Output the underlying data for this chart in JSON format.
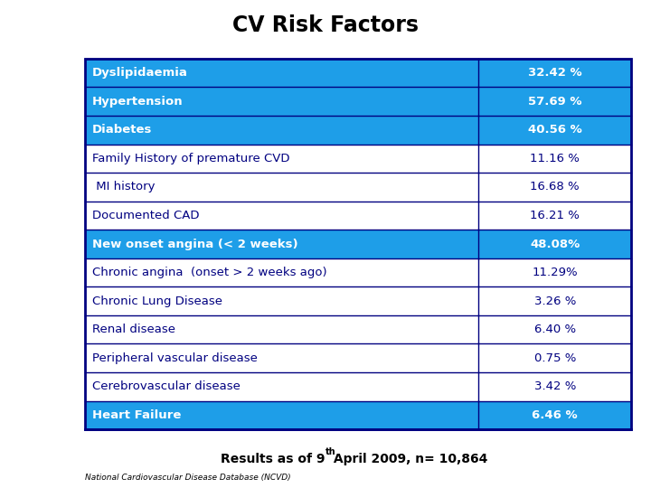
{
  "title": "CV Risk Factors",
  "rows": [
    {
      "label": "Dyslipidaemia",
      "value": "32.42 %",
      "highlight": true
    },
    {
      "label": "Hypertension",
      "value": "57.69 %",
      "highlight": true
    },
    {
      "label": "Diabetes",
      "value": "40.56 %",
      "highlight": true
    },
    {
      "label": "Family History of premature CVD",
      "value": "11.16 %",
      "highlight": false
    },
    {
      "label": " MI history",
      "value": "16.68 %",
      "highlight": false
    },
    {
      "label": "Documented CAD",
      "value": "16.21 %",
      "highlight": false
    },
    {
      "label": "New onset angina (< 2 weeks)",
      "value": "48.08%",
      "highlight": true
    },
    {
      "label": "Chronic angina  (onset > 2 weeks ago)",
      "value": "11.29%",
      "highlight": false
    },
    {
      "label": "Chronic Lung Disease",
      "value": "3.26 %",
      "highlight": false
    },
    {
      "label": "Renal disease",
      "value": "6.40 %",
      "highlight": false
    },
    {
      "label": "Peripheral vascular disease",
      "value": "0.75 %",
      "highlight": false
    },
    {
      "label": "Cerebrovascular disease",
      "value": "3.42 %",
      "highlight": false
    },
    {
      "label": "Heart Failure",
      "value": "6.46 %",
      "highlight": true
    }
  ],
  "highlight_color": "#1E9EE8",
  "normal_color": "#FFFFFF",
  "border_color": "#000080",
  "highlight_text_color": "#FFFFFF",
  "normal_text_color": "#000080",
  "title_color": "#000000",
  "footer_text": "Results as of 9",
  "footer_sup": "th",
  "footer_rest": " April 2009, n= 10,864",
  "footnote": "National Cardiovascular Disease Database (NCVD)",
  "col_split": 0.72
}
